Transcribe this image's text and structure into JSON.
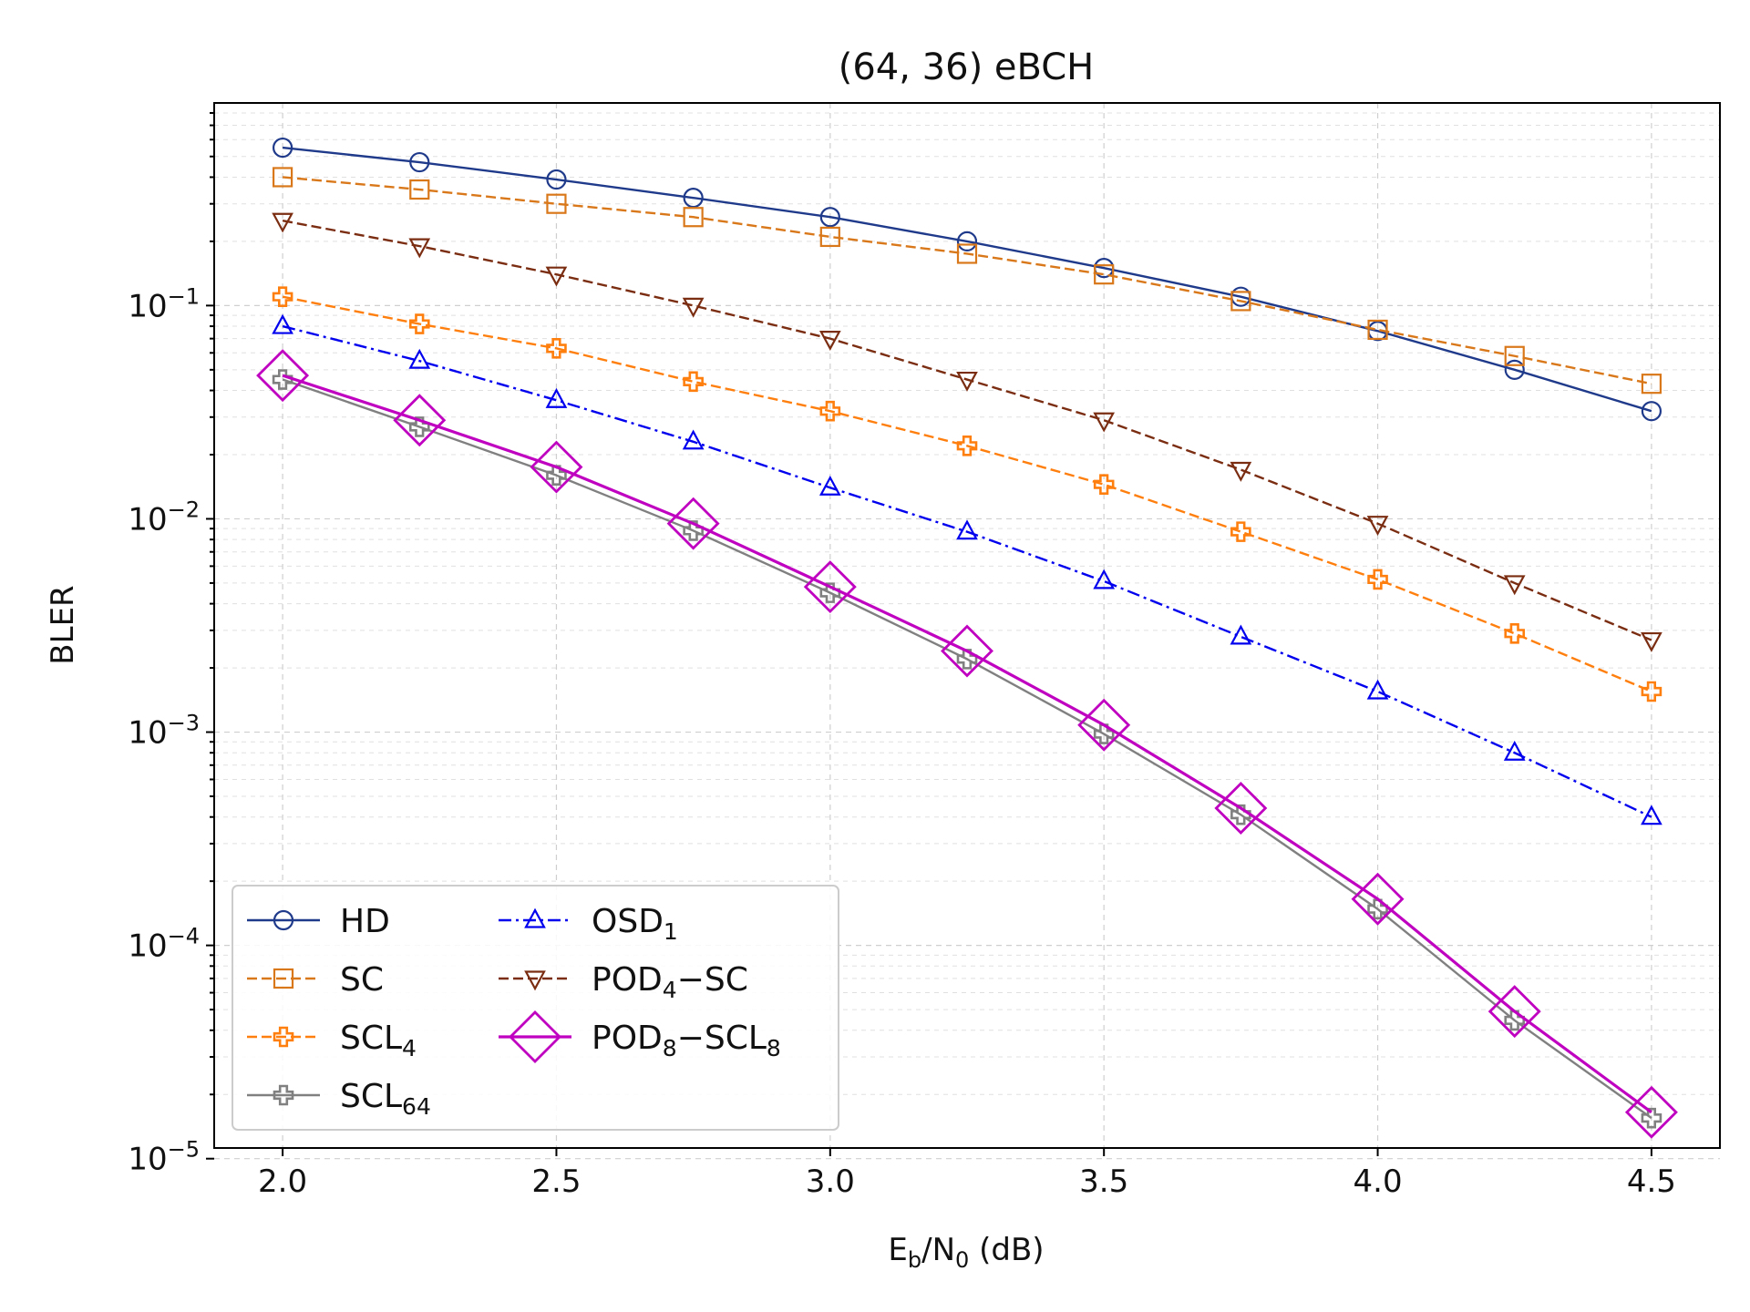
{
  "chart_data": {
    "type": "line",
    "title": "(64, 36) eBCH",
    "xlabel": {
      "main": "E",
      "sub1": "b",
      "mid": "/N",
      "sub2": "0",
      "tail": " (dB)"
    },
    "ylabel": "BLER",
    "xlim": [
      1.875,
      4.625
    ],
    "ylim_log10": [
      -4.95,
      -0.05
    ],
    "x_ticks": [
      2.0,
      2.5,
      3.0,
      3.5,
      4.0,
      4.5
    ],
    "x_tick_labels": [
      "2.0",
      "2.5",
      "3.0",
      "3.5",
      "4.0",
      "4.5"
    ],
    "y_ticks": [
      {
        "exp": -1,
        "base": "10",
        "sup": "−1"
      },
      {
        "exp": -2,
        "base": "10",
        "sup": "−2"
      },
      {
        "exp": -3,
        "base": "10",
        "sup": "−3"
      },
      {
        "exp": -4,
        "base": "10",
        "sup": "−4"
      },
      {
        "exp": -5,
        "base": "10",
        "sup": "−5"
      }
    ],
    "grid": true,
    "legend_position": "lower-left",
    "x": [
      2.0,
      2.25,
      2.5,
      2.75,
      3.0,
      3.25,
      3.5,
      3.75,
      4.0,
      4.25,
      4.5
    ],
    "series": [
      {
        "name": "HD",
        "label": {
          "main": "HD"
        },
        "color": "#1f3a8a",
        "dash": "solid",
        "marker": "circle",
        "values": [
          0.55,
          0.47,
          0.39,
          0.32,
          0.26,
          0.2,
          0.15,
          0.11,
          0.076,
          0.05,
          0.032
        ]
      },
      {
        "name": "SC",
        "label": {
          "main": "SC"
        },
        "color": "#d9781a",
        "dash": "dashed",
        "marker": "square",
        "values": [
          0.4,
          0.35,
          0.3,
          0.26,
          0.21,
          0.175,
          0.14,
          0.105,
          0.077,
          0.058,
          0.043
        ]
      },
      {
        "name": "SCL4",
        "label": {
          "main": "SCL",
          "sub": "4"
        },
        "color": "#ff7f0e",
        "dash": "dashed",
        "marker": "plus",
        "values": [
          0.11,
          0.082,
          0.063,
          0.044,
          0.032,
          0.022,
          0.0145,
          0.0087,
          0.0052,
          0.0029,
          0.00155
        ]
      },
      {
        "name": "SCL64",
        "label": {
          "main": "SCL",
          "sub": "64"
        },
        "color": "#808080",
        "dash": "solid",
        "marker": "plus",
        "values": [
          0.045,
          0.027,
          0.016,
          0.0088,
          0.0045,
          0.0022,
          0.00098,
          0.00041,
          0.000148,
          4.45e-05,
          1.55e-05
        ]
      },
      {
        "name": "OSD1",
        "label": {
          "main": "OSD",
          "sub": "1"
        },
        "color": "#0000ee",
        "dash": "dashdot",
        "marker": "triangle-up",
        "values": [
          0.08,
          0.055,
          0.036,
          0.023,
          0.014,
          0.0087,
          0.0051,
          0.0028,
          0.00155,
          0.0008,
          0.0004
        ]
      },
      {
        "name": "POD4-SC",
        "label": {
          "main": "POD",
          "sub": "4",
          "tail": "−SC"
        },
        "color": "#7b2d12",
        "dash": "dashed",
        "marker": "triangle-down",
        "values": [
          0.25,
          0.19,
          0.14,
          0.1,
          0.07,
          0.045,
          0.029,
          0.017,
          0.0095,
          0.005,
          0.0027
        ]
      },
      {
        "name": "POD8-SCL8",
        "label": {
          "main": "POD",
          "sub": "8",
          "tail": "−SCL",
          "sub2": "8"
        },
        "color": "#c000c0",
        "dash": "solid",
        "marker": "diamond",
        "values": [
          0.047,
          0.029,
          0.0175,
          0.0095,
          0.0048,
          0.0024,
          0.00108,
          0.00044,
          0.000165,
          4.9e-05,
          1.65e-05
        ]
      }
    ],
    "legend_columns": [
      [
        "HD",
        "SC",
        "SCL4",
        "SCL64"
      ],
      [
        "OSD1",
        "POD4-SC",
        "POD8-SCL8"
      ]
    ]
  }
}
